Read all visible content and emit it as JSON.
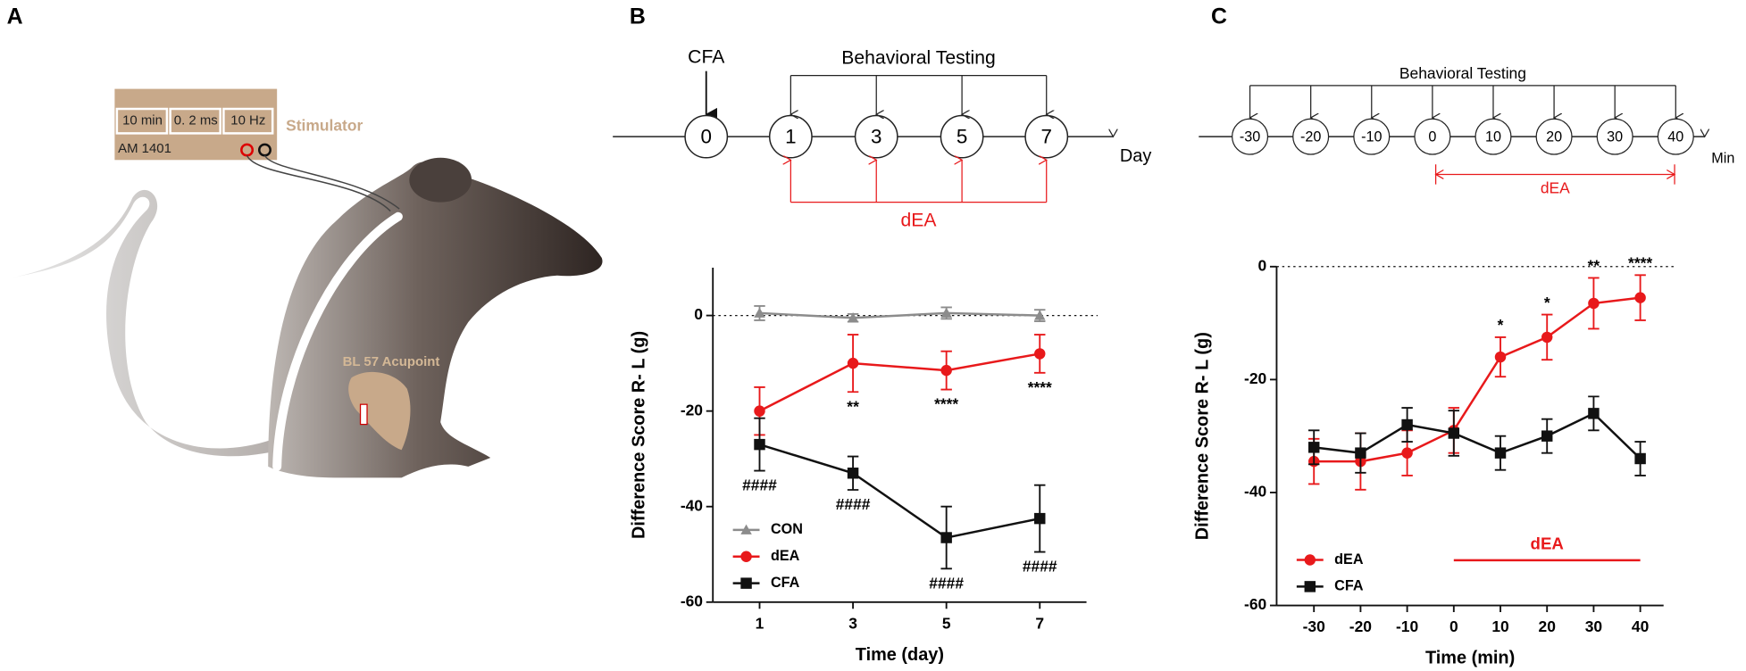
{
  "panels": [
    "A",
    "B",
    "C"
  ],
  "stimulator": {
    "settings": [
      "10 min",
      "0. 2 ms",
      "10 Hz"
    ],
    "name": "Stimulator",
    "model": "AM 1401",
    "acupoint": "BL 57 Acupoint"
  },
  "timeline_b": {
    "event": "CFA",
    "points": [
      "0",
      "1",
      "3",
      "5",
      "7"
    ],
    "testing": "Behavioral Testing",
    "unit": "Day",
    "treatment": "dEA"
  },
  "timeline_c": {
    "points": [
      "-30",
      "-20",
      "-10",
      "0",
      "10",
      "20",
      "30",
      "40"
    ],
    "testing": "Behavioral Testing",
    "unit": "Min",
    "treatment": "dEA"
  },
  "chart_data": [
    {
      "type": "line",
      "xlabel": "Time (day)",
      "ylabel": "Difference Score R- L (g)",
      "x": [
        1,
        3,
        5,
        7
      ],
      "xlim": [
        0,
        8
      ],
      "xticks": [
        1,
        3,
        5,
        7
      ],
      "ylim": [
        -60,
        10
      ],
      "yticks": [
        -60,
        -40,
        -20,
        0
      ],
      "zero_line": true,
      "legend": "lower left",
      "series": [
        {
          "name": "CON",
          "color": "#8c8c8c",
          "marker": "triangle",
          "values": [
            0.5,
            -0.5,
            0.5,
            0
          ],
          "errors": [
            1.5,
            0.8,
            1.2,
            1.2
          ]
        },
        {
          "name": "dEA",
          "color": "#e8191b",
          "marker": "circle",
          "values": [
            -20,
            -10,
            -11.5,
            -8
          ],
          "errors": [
            5,
            6,
            4,
            4
          ],
          "labels": [
            null,
            "**",
            "****",
            "****"
          ],
          "label_side": "below"
        },
        {
          "name": "CFA",
          "color": "#111111",
          "marker": "square",
          "values": [
            -27,
            -33,
            -46.5,
            -42.5
          ],
          "errors": [
            5.5,
            3.5,
            6.5,
            7
          ],
          "labels": [
            "####",
            "####",
            "####",
            "####"
          ],
          "label_side": "below"
        }
      ]
    },
    {
      "type": "line",
      "xlabel": "Time (min)",
      "ylabel": "Difference Score R- L (g)",
      "x": [
        -30,
        -20,
        -10,
        0,
        10,
        20,
        30,
        40
      ],
      "xlim": [
        -38,
        45
      ],
      "xticks": [
        -30,
        -20,
        -10,
        0,
        10,
        20,
        30,
        40
      ],
      "ylim": [
        -60,
        0
      ],
      "yticks": [
        -60,
        -40,
        -20,
        0
      ],
      "zero_line": true,
      "legend": "lower left",
      "period": {
        "label": "dEA",
        "x": [
          0,
          40
        ],
        "y": -52,
        "color": "#e8191b"
      },
      "series": [
        {
          "name": "dEA",
          "color": "#e8191b",
          "marker": "circle",
          "values": [
            -34.5,
            -34.5,
            -33,
            -29,
            -16,
            -12.5,
            -6.5,
            -5.5
          ],
          "errors": [
            4,
            5,
            4,
            4,
            3.5,
            4,
            4.5,
            4
          ],
          "labels": [
            null,
            null,
            null,
            null,
            "*",
            "*",
            "**",
            "****"
          ],
          "label_side": "above"
        },
        {
          "name": "CFA",
          "color": "#111111",
          "marker": "square",
          "values": [
            -32,
            -33,
            -28,
            -29.5,
            -33,
            -30,
            -26,
            -34
          ],
          "errors": [
            3,
            3.5,
            3,
            4,
            3,
            3,
            3,
            3
          ]
        }
      ]
    }
  ]
}
